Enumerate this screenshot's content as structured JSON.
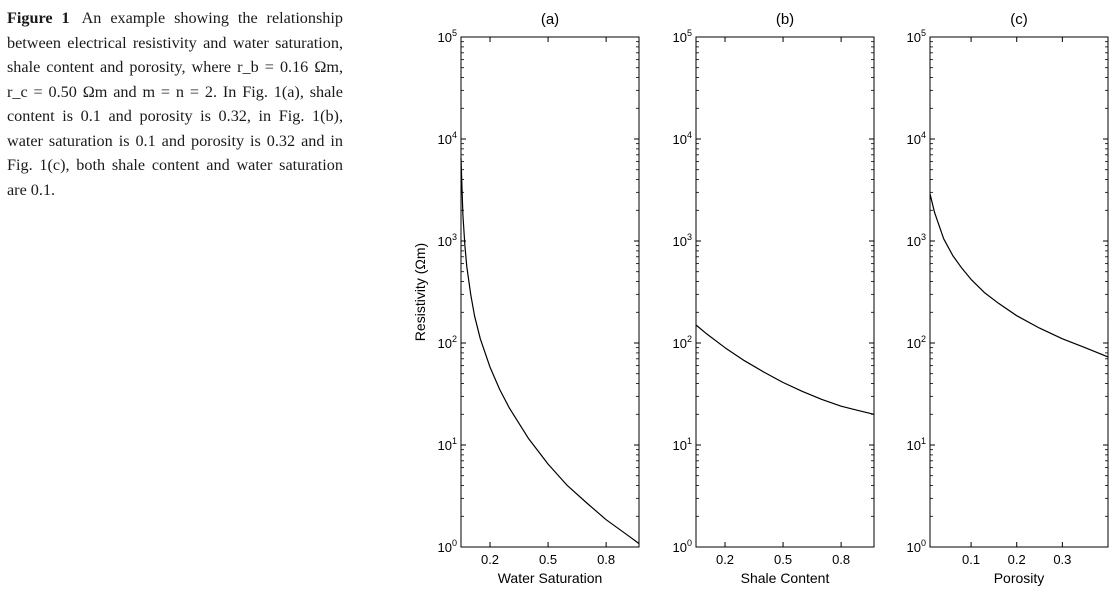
{
  "caption": {
    "label": "Figure 1",
    "text": "An example showing the relationship between electrical resistivity and water saturation, shale content and porosity, where r_b = 0.16 Ωm, r_c = 0.50 Ωm and m = n = 2. In Fig. 1(a), shale content is 0.1 and porosity is 0.32, in Fig. 1(b), water saturation is 0.1 and porosity is 0.32 and in Fig. 1(c), both shale content and water saturation are 0.1."
  },
  "chart_data": [
    {
      "type": "line",
      "title": "(a)",
      "xlabel": "Water Saturation",
      "ylabel": "Resistivity (Ωm)",
      "xlim": [
        0.05,
        0.97
      ],
      "ylim": [
        1,
        100000
      ],
      "yscale": "log",
      "xticks": [
        0.2,
        0.5,
        0.8
      ],
      "xtick_labels": [
        "0.2",
        "0.5",
        "0.8"
      ],
      "yticks": [
        1,
        10,
        100,
        1000,
        10000,
        100000
      ],
      "ytick_labels": [
        "10^0",
        "10^1",
        "10^2",
        "10^3",
        "10^4",
        "10^5"
      ],
      "grid": false,
      "series": [
        {
          "color": "#000000",
          "x": [
            0.05,
            0.06,
            0.07,
            0.08,
            0.1,
            0.12,
            0.15,
            0.2,
            0.25,
            0.3,
            0.4,
            0.5,
            0.6,
            0.7,
            0.8,
            0.9,
            0.97
          ],
          "y": [
            6500,
            1800,
            900,
            560,
            300,
            185,
            110,
            58,
            35,
            23,
            11.5,
            6.5,
            4.0,
            2.7,
            1.85,
            1.35,
            1.08
          ]
        }
      ]
    },
    {
      "type": "line",
      "title": "(b)",
      "xlabel": "Shale Content",
      "ylabel": "",
      "xlim": [
        0.05,
        0.97
      ],
      "ylim": [
        1,
        100000
      ],
      "yscale": "log",
      "xticks": [
        0.2,
        0.5,
        0.8
      ],
      "xtick_labels": [
        "0.2",
        "0.5",
        "0.8"
      ],
      "yticks": [
        1,
        10,
        100,
        1000,
        10000,
        100000
      ],
      "ytick_labels": [
        "10^0",
        "10^1",
        "10^2",
        "10^3",
        "10^4",
        "10^5"
      ],
      "grid": false,
      "series": [
        {
          "color": "#000000",
          "x": [
            0.05,
            0.1,
            0.2,
            0.3,
            0.4,
            0.5,
            0.6,
            0.7,
            0.8,
            0.9,
            0.97
          ],
          "y": [
            150,
            125,
            90,
            67,
            52,
            41,
            33.5,
            28,
            24,
            21.5,
            20
          ]
        }
      ]
    },
    {
      "type": "line",
      "title": "(c)",
      "xlabel": "Porosity",
      "ylabel": "",
      "xlim": [
        0.01,
        0.4
      ],
      "ylim": [
        1,
        100000
      ],
      "yscale": "log",
      "xticks": [
        0.1,
        0.2,
        0.3
      ],
      "xtick_labels": [
        "0.1",
        "0.2",
        "0.3"
      ],
      "yticks": [
        1,
        10,
        100,
        1000,
        10000,
        100000
      ],
      "ytick_labels": [
        "10^0",
        "10^1",
        "10^2",
        "10^3",
        "10^4",
        "10^5"
      ],
      "grid": false,
      "series": [
        {
          "color": "#000000",
          "x": [
            0.01,
            0.02,
            0.04,
            0.06,
            0.08,
            0.1,
            0.13,
            0.16,
            0.2,
            0.25,
            0.3,
            0.35,
            0.4
          ],
          "y": [
            2900,
            1900,
            1050,
            720,
            540,
            420,
            310,
            245,
            185,
            140,
            110,
            90,
            73
          ]
        }
      ]
    }
  ]
}
